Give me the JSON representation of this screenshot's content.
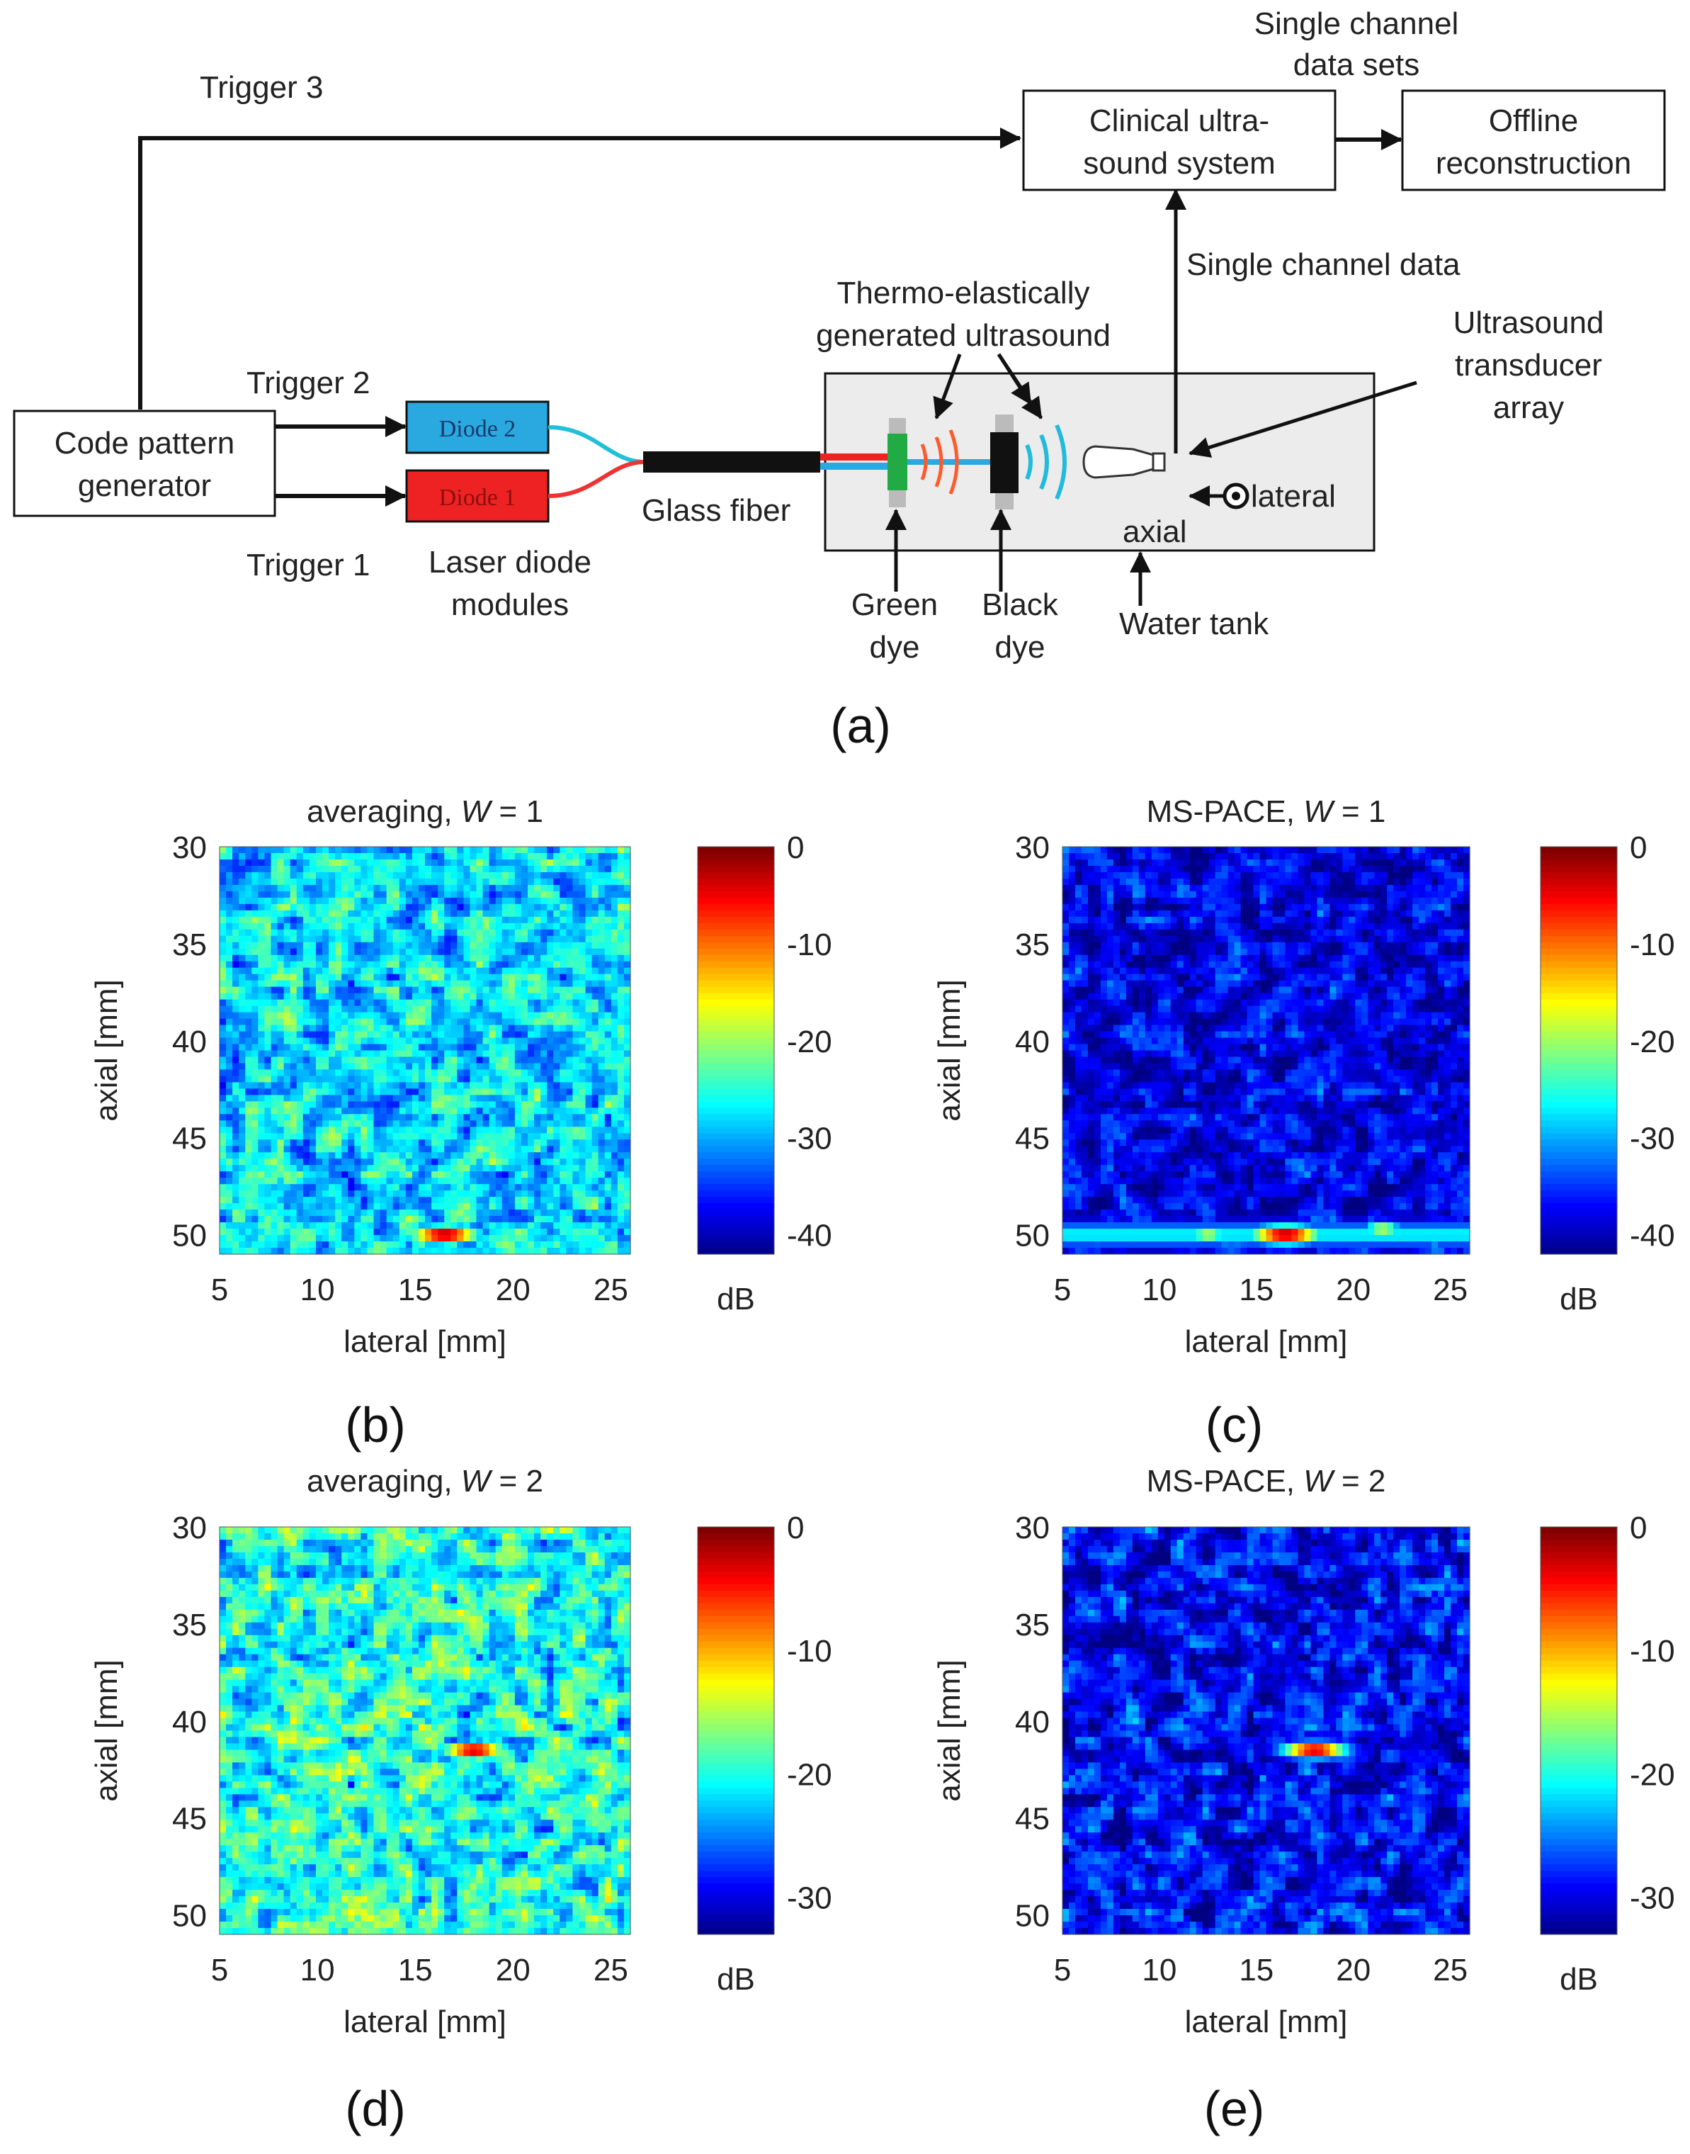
{
  "diagram": {
    "trigger3": "Trigger 3",
    "trigger2": "Trigger 2",
    "trigger1": "Trigger 1",
    "code_gen": [
      "Code pattern",
      "generator"
    ],
    "diode2": "Diode 2",
    "diode1": "Diode 1",
    "laser_modules": [
      "Laser diode",
      "modules"
    ],
    "glass_fiber": "Glass fiber",
    "thermo": [
      "Thermo-elastically",
      "generated ultrasound"
    ],
    "green_dye": [
      "Green",
      "dye"
    ],
    "black_dye": [
      "Black",
      "dye"
    ],
    "water_tank": "Water tank",
    "axial": "axial",
    "lateral": "lateral",
    "transducer": [
      "Ultrasound",
      "transducer",
      "array"
    ],
    "clinical": [
      "Clinical ultra-",
      "sound system"
    ],
    "offline": [
      "Offline",
      "reconstruction"
    ],
    "single_sets": [
      "Single channel",
      "data sets"
    ],
    "single_data": "Single channel data",
    "panel_label": "(a)"
  },
  "colors": {
    "diode2": "#29a9e0",
    "diode1": "#ee2222",
    "tank": "#ececec",
    "green_dye": "#22aa44",
    "wave_orange": "#ff5a2a",
    "wave_cyan": "#22bbdd",
    "jet_low": "#00008f",
    "jet_high": "#800000"
  },
  "chart_data": [
    {
      "panel": "(b)",
      "type": "heatmap",
      "title_prefix": "averaging, ",
      "title_var": "W",
      "title_suffix": " = 1",
      "xlabel": "lateral [mm]",
      "ylabel": "axial [mm]",
      "xlim": [
        5,
        26
      ],
      "ylim": [
        30,
        51
      ],
      "xticks": [
        "5",
        "10",
        "15",
        "20",
        "25"
      ],
      "yticks": [
        "30",
        "35",
        "40",
        "45",
        "50"
      ],
      "colorbar": {
        "ticks": [
          "0",
          "-10",
          "-20",
          "-30",
          "-40"
        ],
        "range": [
          -42,
          0
        ],
        "unit": "dB"
      },
      "background_level": 0.34,
      "noise": 0.16,
      "hotspot": {
        "x": 16.5,
        "y": 50.0,
        "sx": 1.3,
        "sy": 0.35
      },
      "side_spots": []
    },
    {
      "panel": "(c)",
      "type": "heatmap",
      "title_prefix": "MS-PACE, ",
      "title_var": "W",
      "title_suffix": " = 1",
      "xlabel": "lateral [mm]",
      "ylabel": "axial [mm]",
      "xlim": [
        5,
        26
      ],
      "ylim": [
        30,
        51
      ],
      "xticks": [
        "5",
        "10",
        "15",
        "20",
        "25"
      ],
      "yticks": [
        "30",
        "35",
        "40",
        "45",
        "50"
      ],
      "colorbar": {
        "ticks": [
          "0",
          "-10",
          "-20",
          "-30",
          "-40"
        ],
        "range": [
          -42,
          0
        ],
        "unit": "dB"
      },
      "background_level": 0.1,
      "noise": 0.13,
      "hotspot": {
        "x": 16.5,
        "y": 50.0,
        "sx": 1.3,
        "sy": 0.35
      },
      "side_spots": [
        {
          "x": 12.5,
          "y": 50.0
        },
        {
          "x": 21.5,
          "y": 49.7
        }
      ]
    },
    {
      "panel": "(d)",
      "type": "heatmap",
      "title_prefix": "averaging, ",
      "title_var": "W",
      "title_suffix": " = 2",
      "xlabel": "lateral [mm]",
      "ylabel": "axial [mm]",
      "xlim": [
        5,
        26
      ],
      "ylim": [
        30,
        51
      ],
      "xticks": [
        "5",
        "10",
        "15",
        "20",
        "25"
      ],
      "yticks": [
        "30",
        "35",
        "40",
        "45",
        "50"
      ],
      "colorbar": {
        "ticks": [
          "0",
          "-10",
          "-20",
          "-30"
        ],
        "range": [
          -33,
          0
        ],
        "unit": "dB"
      },
      "background_level": 0.4,
      "noise": 0.18,
      "hotspot": {
        "x": 18.0,
        "y": 41.5,
        "sx": 1.2,
        "sy": 0.3
      },
      "side_spots": []
    },
    {
      "panel": "(e)",
      "type": "heatmap",
      "title_prefix": "MS-PACE, ",
      "title_var": "W",
      "title_suffix": " = 2",
      "xlabel": "lateral [mm]",
      "ylabel": "axial [mm]",
      "xlim": [
        5,
        26
      ],
      "ylim": [
        30,
        51
      ],
      "xticks": [
        "5",
        "10",
        "15",
        "20",
        "25"
      ],
      "yticks": [
        "30",
        "35",
        "40",
        "45",
        "50"
      ],
      "colorbar": {
        "ticks": [
          "0",
          "-10",
          "-20",
          "-30"
        ],
        "range": [
          -33,
          0
        ],
        "unit": "dB"
      },
      "background_level": 0.12,
      "noise": 0.15,
      "hotspot": {
        "x": 18.0,
        "y": 41.5,
        "sx": 1.2,
        "sy": 0.3
      },
      "side_spots": []
    }
  ]
}
